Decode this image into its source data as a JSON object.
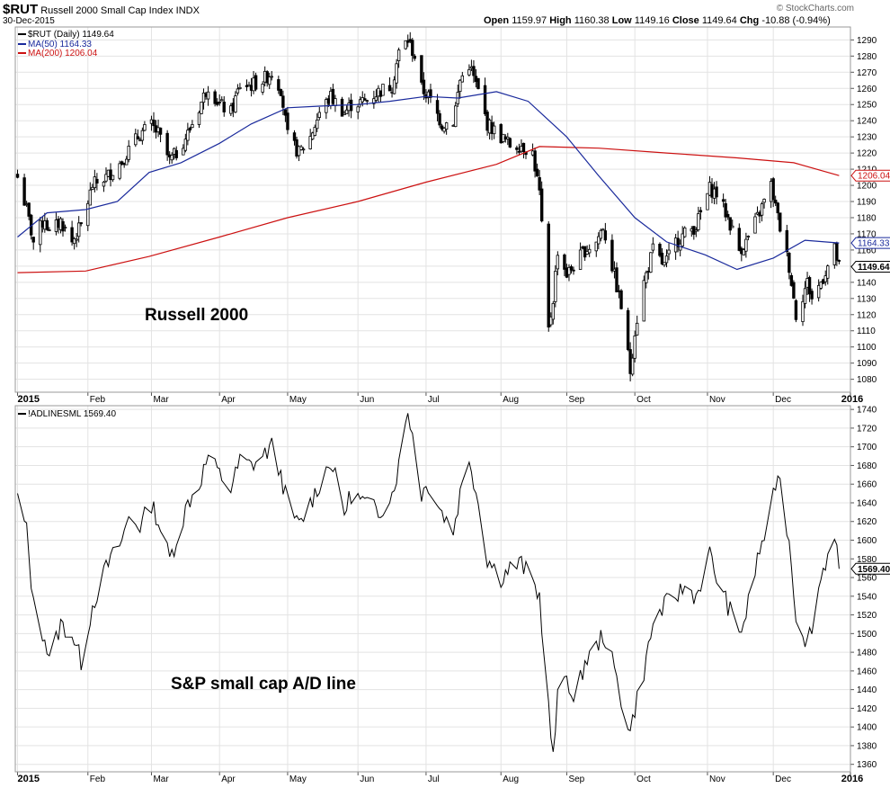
{
  "header": {
    "symbol": "$RUT",
    "name": "Russell 2000 Small Cap Index",
    "exchange": "INDX",
    "date": "30-Dec-2015",
    "open_label": "Open",
    "open": "1159.97",
    "high_label": "High",
    "high": "1160.38",
    "low_label": "Low",
    "low": "1149.16",
    "close_label": "Close",
    "close": "1149.64",
    "chg_label": "Chg",
    "chg": "-10.88 (-0.94%)",
    "credit": "© StockCharts.com"
  },
  "legend": {
    "price": "$RUT (Daily) 1149.64",
    "ma50": "MA(50) 1164.33",
    "ma200": "MA(200) 1206.04",
    "ad": "!ADLINESML 1569.40"
  },
  "annotations": {
    "top": "Russell 2000",
    "bottom": "S&P small cap A/D line"
  },
  "colors": {
    "price": "#000000",
    "ma50": "#1a2a9c",
    "ma200": "#cc1111",
    "grid": "#e3e3e3",
    "frame": "#999999"
  },
  "chart_data": [
    {
      "type": "candlestick",
      "title": "Russell 2000",
      "ylim": [
        1072,
        1298
      ],
      "yticks": [
        1080,
        1090,
        1100,
        1110,
        1120,
        1130,
        1140,
        1150,
        1160,
        1170,
        1180,
        1190,
        1200,
        1210,
        1220,
        1230,
        1240,
        1250,
        1260,
        1270,
        1280,
        1290
      ],
      "x_tick_labels": [
        "2015",
        "Feb",
        "Mar",
        "Apr",
        "May",
        "Jun",
        "Jul",
        "Aug",
        "Sep",
        "Oct",
        "Nov",
        "Dec",
        "2016"
      ],
      "close_path": [
        [
          "2015-01-02",
          1205
        ],
        [
          "2015-01-06",
          1185
        ],
        [
          "2015-01-09",
          1165
        ],
        [
          "2015-01-14",
          1180
        ],
        [
          "2015-01-16",
          1170
        ],
        [
          "2015-01-21",
          1178
        ],
        [
          "2015-01-26",
          1165
        ],
        [
          "2015-01-30",
          1175
        ],
        [
          "2015-02-04",
          1200
        ],
        [
          "2015-02-10",
          1205
        ],
        [
          "2015-02-17",
          1215
        ],
        [
          "2015-02-20",
          1222
        ],
        [
          "2015-02-25",
          1232
        ],
        [
          "2015-03-02",
          1237
        ],
        [
          "2015-03-05",
          1232
        ],
        [
          "2015-03-10",
          1215
        ],
        [
          "2015-03-13",
          1220
        ],
        [
          "2015-03-18",
          1232
        ],
        [
          "2015-03-23",
          1248
        ],
        [
          "2015-03-27",
          1262
        ],
        [
          "2015-04-01",
          1250
        ],
        [
          "2015-04-06",
          1245
        ],
        [
          "2015-04-10",
          1262
        ],
        [
          "2015-04-15",
          1262
        ],
        [
          "2015-04-20",
          1265
        ],
        [
          "2015-04-24",
          1270
        ],
        [
          "2015-04-28",
          1260
        ],
        [
          "2015-05-01",
          1230
        ],
        [
          "2015-05-06",
          1220
        ],
        [
          "2015-05-11",
          1230
        ],
        [
          "2015-05-15",
          1245
        ],
        [
          "2015-05-20",
          1255
        ],
        [
          "2015-05-26",
          1245
        ],
        [
          "2015-05-29",
          1250
        ],
        [
          "2015-06-04",
          1252
        ],
        [
          "2015-06-10",
          1258
        ],
        [
          "2015-06-16",
          1262
        ],
        [
          "2015-06-19",
          1282
        ],
        [
          "2015-06-23",
          1290
        ],
        [
          "2015-06-26",
          1280
        ],
        [
          "2015-06-29",
          1260
        ],
        [
          "2015-07-02",
          1255
        ],
        [
          "2015-07-08",
          1238
        ],
        [
          "2015-07-13",
          1240
        ],
        [
          "2015-07-16",
          1265
        ],
        [
          "2015-07-20",
          1275
        ],
        [
          "2015-07-24",
          1258
        ],
        [
          "2015-07-28",
          1238
        ],
        [
          "2015-08-03",
          1230
        ],
        [
          "2015-08-07",
          1225
        ],
        [
          "2015-08-12",
          1225
        ],
        [
          "2015-08-17",
          1220
        ],
        [
          "2015-08-20",
          1195
        ],
        [
          "2015-08-24",
          1110
        ],
        [
          "2015-08-26",
          1130
        ],
        [
          "2015-08-28",
          1160
        ],
        [
          "2015-09-01",
          1145
        ],
        [
          "2015-09-04",
          1150
        ],
        [
          "2015-09-09",
          1160
        ],
        [
          "2015-09-14",
          1165
        ],
        [
          "2015-09-17",
          1175
        ],
        [
          "2015-09-21",
          1150
        ],
        [
          "2015-09-25",
          1125
        ],
        [
          "2015-09-29",
          1085
        ],
        [
          "2015-10-01",
          1110
        ],
        [
          "2015-10-05",
          1140
        ],
        [
          "2015-10-09",
          1160
        ],
        [
          "2015-10-14",
          1150
        ],
        [
          "2015-10-19",
          1165
        ],
        [
          "2015-10-23",
          1170
        ],
        [
          "2015-10-28",
          1175
        ],
        [
          "2015-11-03",
          1198
        ],
        [
          "2015-11-06",
          1195
        ],
        [
          "2015-11-11",
          1180
        ],
        [
          "2015-11-16",
          1160
        ],
        [
          "2015-11-19",
          1165
        ],
        [
          "2015-11-24",
          1180
        ],
        [
          "2015-11-30",
          1200
        ],
        [
          "2015-12-03",
          1180
        ],
        [
          "2015-12-08",
          1150
        ],
        [
          "2015-12-11",
          1120
        ],
        [
          "2015-12-16",
          1140
        ],
        [
          "2015-12-18",
          1130
        ],
        [
          "2015-12-22",
          1140
        ],
        [
          "2015-12-28",
          1160
        ],
        [
          "2015-12-30",
          1149.64
        ]
      ],
      "ma50": [
        [
          "2015-01-02",
          1168
        ],
        [
          "2015-01-15",
          1183
        ],
        [
          "2015-02-01",
          1185
        ],
        [
          "2015-02-15",
          1190
        ],
        [
          "2015-03-01",
          1208
        ],
        [
          "2015-03-15",
          1214
        ],
        [
          "2015-04-01",
          1226
        ],
        [
          "2015-04-15",
          1238
        ],
        [
          "2015-05-01",
          1248
        ],
        [
          "2015-05-15",
          1249
        ],
        [
          "2015-06-01",
          1250
        ],
        [
          "2015-06-15",
          1252
        ],
        [
          "2015-07-01",
          1255
        ],
        [
          "2015-07-15",
          1254
        ],
        [
          "2015-08-01",
          1258
        ],
        [
          "2015-08-15",
          1252
        ],
        [
          "2015-09-01",
          1230
        ],
        [
          "2015-09-15",
          1206
        ],
        [
          "2015-10-01",
          1180
        ],
        [
          "2015-10-15",
          1165
        ],
        [
          "2015-11-01",
          1157
        ],
        [
          "2015-11-15",
          1148
        ],
        [
          "2015-12-01",
          1155
        ],
        [
          "2015-12-15",
          1166
        ],
        [
          "2015-12-30",
          1164.33
        ]
      ],
      "ma200": [
        [
          "2015-01-02",
          1146
        ],
        [
          "2015-02-01",
          1147
        ],
        [
          "2015-03-01",
          1156
        ],
        [
          "2015-04-01",
          1168
        ],
        [
          "2015-05-01",
          1180
        ],
        [
          "2015-06-01",
          1190
        ],
        [
          "2015-07-01",
          1202
        ],
        [
          "2015-08-01",
          1213
        ],
        [
          "2015-08-20",
          1224
        ],
        [
          "2015-09-15",
          1223
        ],
        [
          "2015-10-15",
          1220
        ],
        [
          "2015-11-15",
          1217
        ],
        [
          "2015-12-10",
          1214
        ],
        [
          "2015-12-30",
          1206.04
        ]
      ],
      "last": 1149.64,
      "ma50_last": 1164.33,
      "ma200_last": 1206.04
    },
    {
      "type": "line",
      "title": "S&P small cap A/D line",
      "ylim": [
        1352,
        1744
      ],
      "yticks": [
        1360,
        1380,
        1400,
        1420,
        1440,
        1460,
        1480,
        1500,
        1520,
        1540,
        1560,
        1580,
        1600,
        1620,
        1640,
        1660,
        1680,
        1700,
        1720,
        1740
      ],
      "x_tick_labels": [
        "2015",
        "Feb",
        "Mar",
        "Apr",
        "May",
        "Jun",
        "Jul",
        "Aug",
        "Sep",
        "Oct",
        "Nov",
        "Dec",
        "2016"
      ],
      "series": [
        {
          "name": "!ADLINESML",
          "points": [
            [
              "2015-01-02",
              1645
            ],
            [
              "2015-01-06",
              1610
            ],
            [
              "2015-01-09",
              1530
            ],
            [
              "2015-01-14",
              1495
            ],
            [
              "2015-01-16",
              1470
            ],
            [
              "2015-01-21",
              1510
            ],
            [
              "2015-01-26",
              1500
            ],
            [
              "2015-01-30",
              1470
            ],
            [
              "2015-02-04",
              1530
            ],
            [
              "2015-02-10",
              1570
            ],
            [
              "2015-02-17",
              1600
            ],
            [
              "2015-02-20",
              1625
            ],
            [
              "2015-02-25",
              1615
            ],
            [
              "2015-03-02",
              1640
            ],
            [
              "2015-03-05",
              1620
            ],
            [
              "2015-03-10",
              1580
            ],
            [
              "2015-03-13",
              1600
            ],
            [
              "2015-03-18",
              1640
            ],
            [
              "2015-03-23",
              1660
            ],
            [
              "2015-03-27",
              1690
            ],
            [
              "2015-04-01",
              1670
            ],
            [
              "2015-04-06",
              1655
            ],
            [
              "2015-04-10",
              1685
            ],
            [
              "2015-04-15",
              1680
            ],
            [
              "2015-04-20",
              1690
            ],
            [
              "2015-04-24",
              1700
            ],
            [
              "2015-04-28",
              1670
            ],
            [
              "2015-05-01",
              1640
            ],
            [
              "2015-05-06",
              1615
            ],
            [
              "2015-05-11",
              1640
            ],
            [
              "2015-05-15",
              1660
            ],
            [
              "2015-05-20",
              1685
            ],
            [
              "2015-05-26",
              1630
            ],
            [
              "2015-05-29",
              1650
            ],
            [
              "2015-06-04",
              1640
            ],
            [
              "2015-06-10",
              1630
            ],
            [
              "2015-06-16",
              1650
            ],
            [
              "2015-06-19",
              1680
            ],
            [
              "2015-06-23",
              1740
            ],
            [
              "2015-06-26",
              1700
            ],
            [
              "2015-06-29",
              1650
            ],
            [
              "2015-07-02",
              1660
            ],
            [
              "2015-07-08",
              1630
            ],
            [
              "2015-07-13",
              1610
            ],
            [
              "2015-07-16",
              1650
            ],
            [
              "2015-07-20",
              1690
            ],
            [
              "2015-07-24",
              1640
            ],
            [
              "2015-07-28",
              1580
            ],
            [
              "2015-08-03",
              1560
            ],
            [
              "2015-08-07",
              1570
            ],
            [
              "2015-08-12",
              1575
            ],
            [
              "2015-08-17",
              1555
            ],
            [
              "2015-08-20",
              1540
            ],
            [
              "2015-08-24",
              1420
            ],
            [
              "2015-08-26",
              1365
            ],
            [
              "2015-08-28",
              1430
            ],
            [
              "2015-09-01",
              1460
            ],
            [
              "2015-09-04",
              1420
            ],
            [
              "2015-09-09",
              1470
            ],
            [
              "2015-09-14",
              1485
            ],
            [
              "2015-09-17",
              1500
            ],
            [
              "2015-09-21",
              1470
            ],
            [
              "2015-09-25",
              1430
            ],
            [
              "2015-09-29",
              1395
            ],
            [
              "2015-10-01",
              1420
            ],
            [
              "2015-10-05",
              1460
            ],
            [
              "2015-10-09",
              1510
            ],
            [
              "2015-10-14",
              1530
            ],
            [
              "2015-10-19",
              1540
            ],
            [
              "2015-10-23",
              1550
            ],
            [
              "2015-10-28",
              1540
            ],
            [
              "2015-11-03",
              1585
            ],
            [
              "2015-11-06",
              1560
            ],
            [
              "2015-11-11",
              1530
            ],
            [
              "2015-11-16",
              1500
            ],
            [
              "2015-11-19",
              1520
            ],
            [
              "2015-11-24",
              1580
            ],
            [
              "2015-11-30",
              1630
            ],
            [
              "2015-12-03",
              1675
            ],
            [
              "2015-12-08",
              1600
            ],
            [
              "2015-12-11",
              1520
            ],
            [
              "2015-12-16",
              1490
            ],
            [
              "2015-12-18",
              1510
            ],
            [
              "2015-12-22",
              1560
            ],
            [
              "2015-12-28",
              1610
            ],
            [
              "2015-12-30",
              1569.4
            ]
          ]
        }
      ],
      "last": 1569.4
    }
  ]
}
